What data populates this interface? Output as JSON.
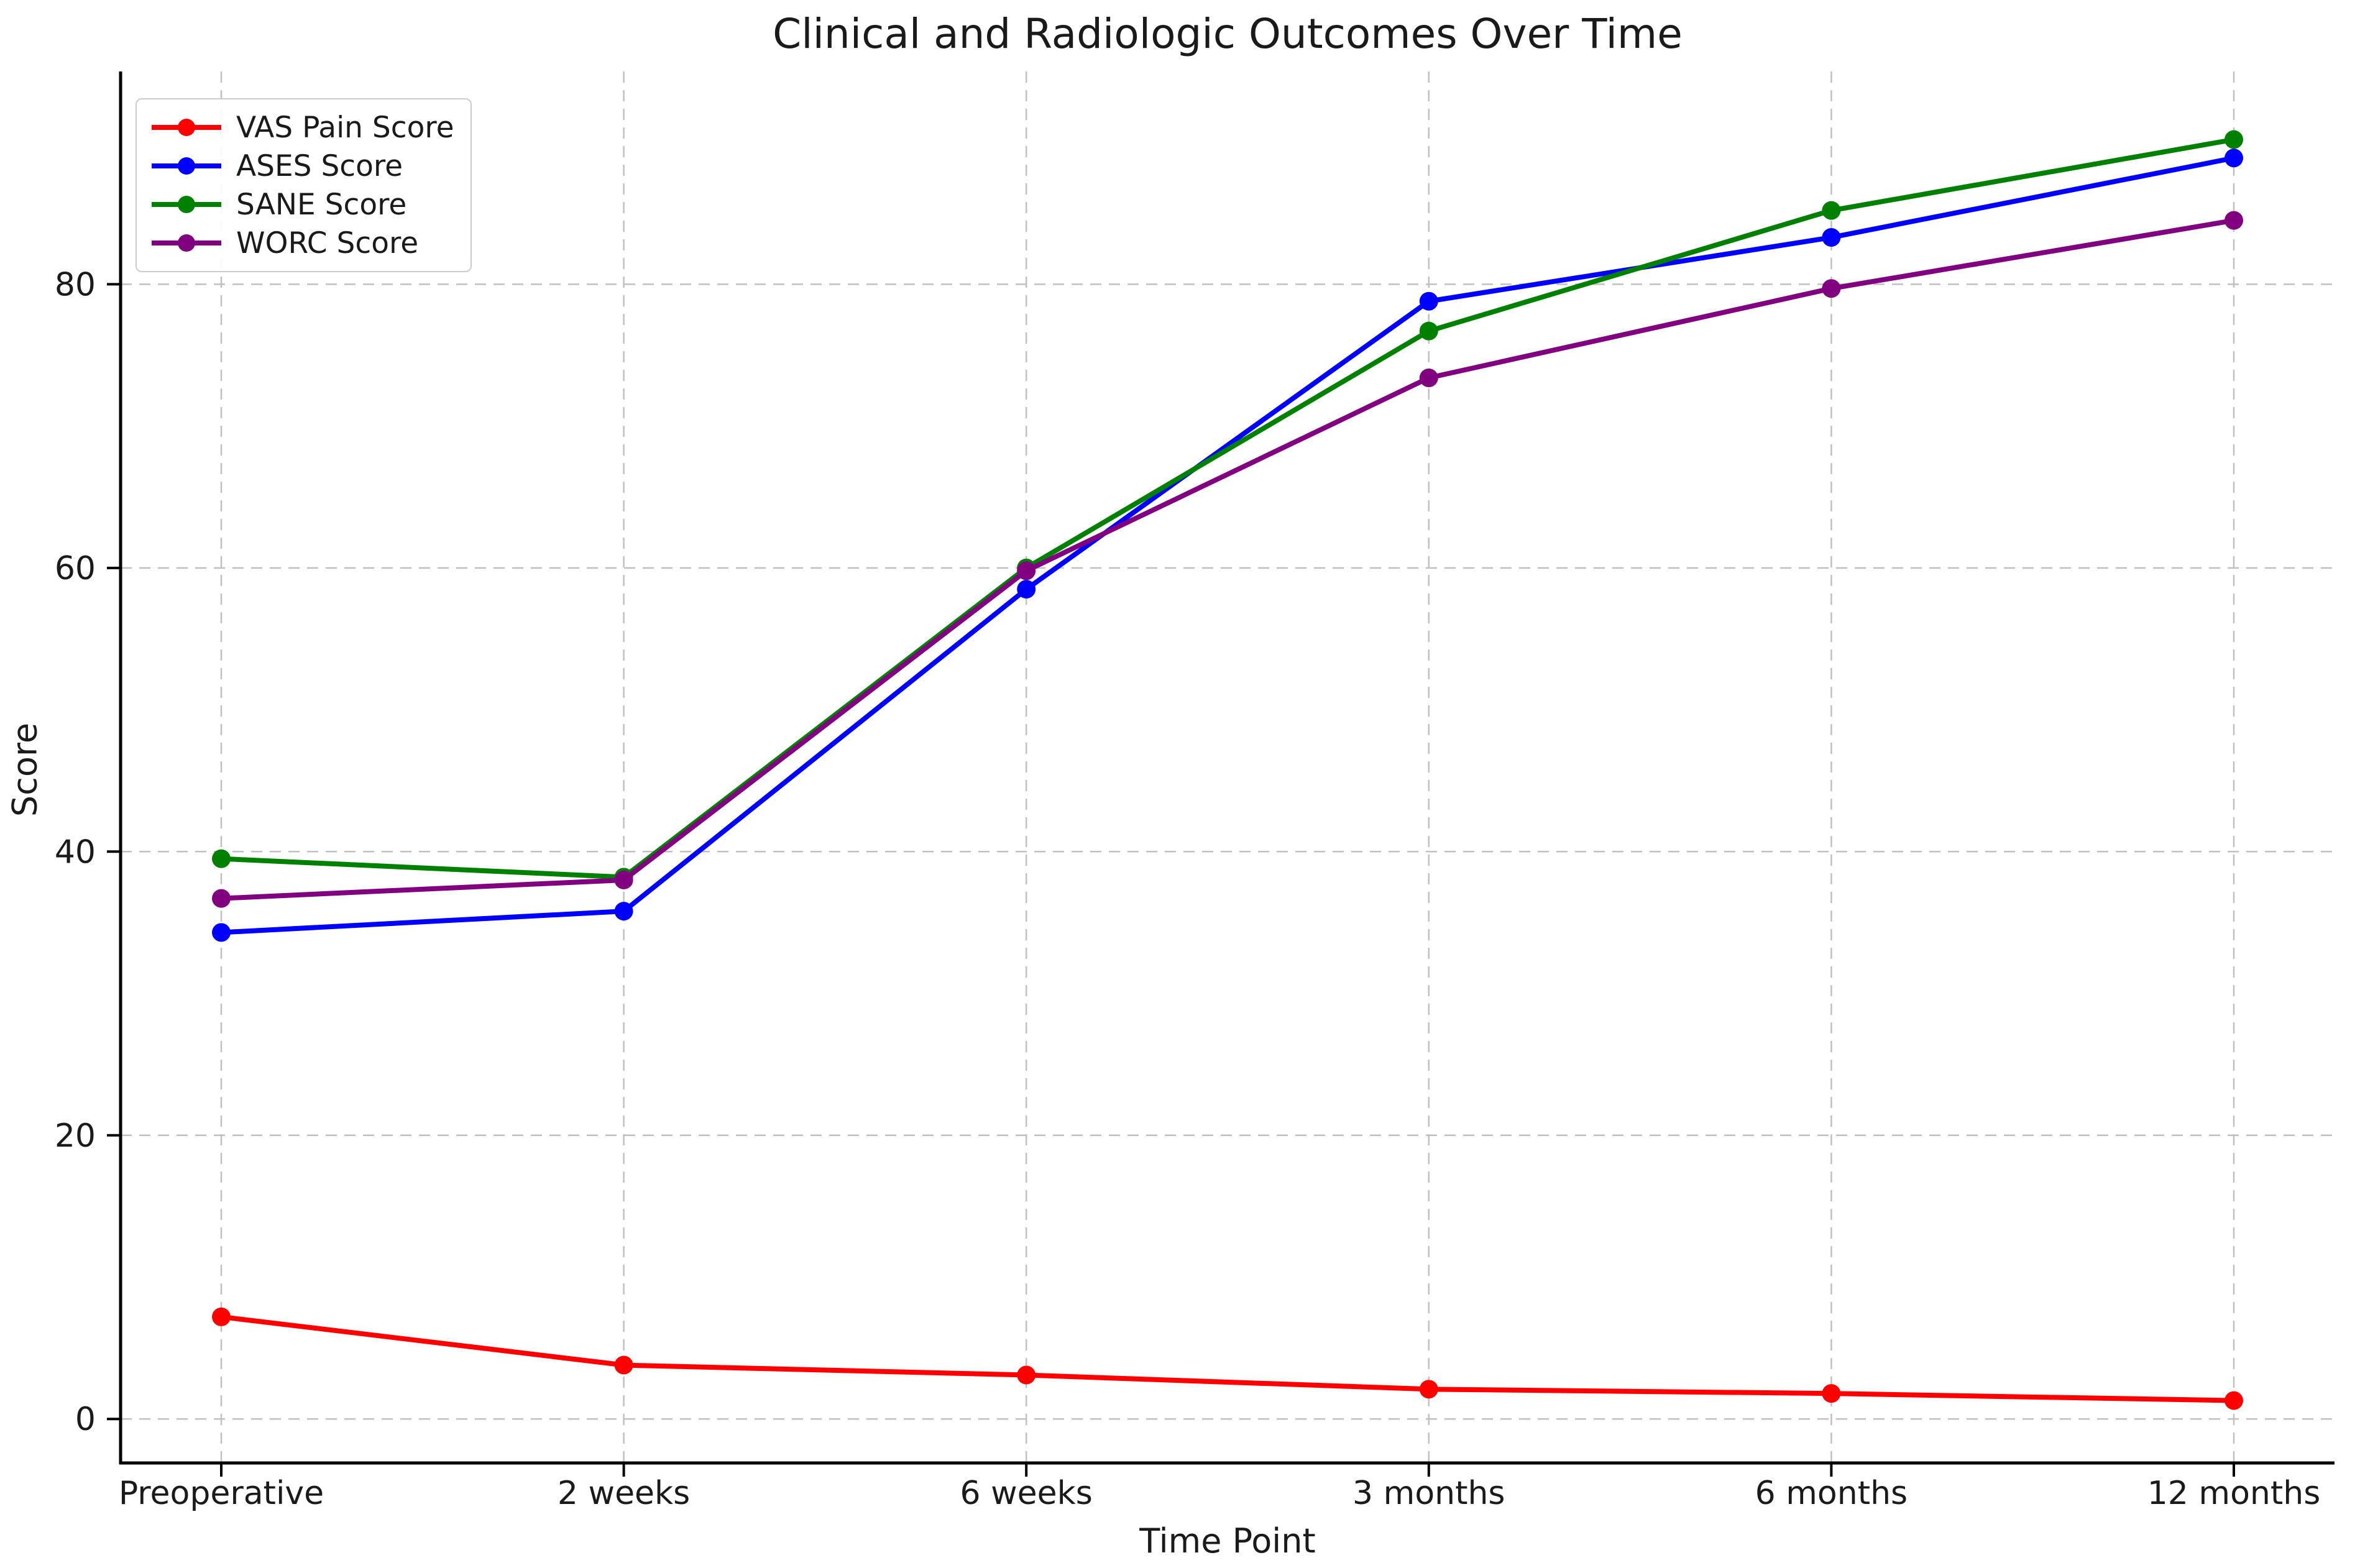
{
  "chart_data": {
    "type": "line",
    "title": "Clinical and Radiologic Outcomes Over Time",
    "xlabel": "Time Point",
    "ylabel": "Score",
    "categories": [
      "Preoperative",
      "2 weeks",
      "6 weeks",
      "3 months",
      "6 months",
      "12 months"
    ],
    "yticks": [
      0,
      20,
      40,
      60,
      80
    ],
    "ylim": [
      -3.1,
      95.0
    ],
    "grid": true,
    "grid_style": "dashed",
    "legend_position": "upper-left",
    "background_color": "#ffffff",
    "spine_color": "#000000",
    "gridline_color": "#c0c0c0",
    "series": [
      {
        "name": "VAS Pain Score",
        "color": "#ff0000",
        "values": [
          7.2,
          3.8,
          3.1,
          2.1,
          1.8,
          1.3
        ]
      },
      {
        "name": "ASES Score",
        "color": "#0000ff",
        "values": [
          34.3,
          35.8,
          58.5,
          78.8,
          83.3,
          88.9
        ]
      },
      {
        "name": "SANE Score",
        "color": "#008000",
        "values": [
          39.5,
          38.2,
          60.0,
          76.7,
          85.2,
          90.2
        ]
      },
      {
        "name": "WORC Score",
        "color": "#800080",
        "values": [
          36.7,
          38.0,
          59.8,
          73.4,
          79.7,
          84.5
        ]
      }
    ]
  }
}
